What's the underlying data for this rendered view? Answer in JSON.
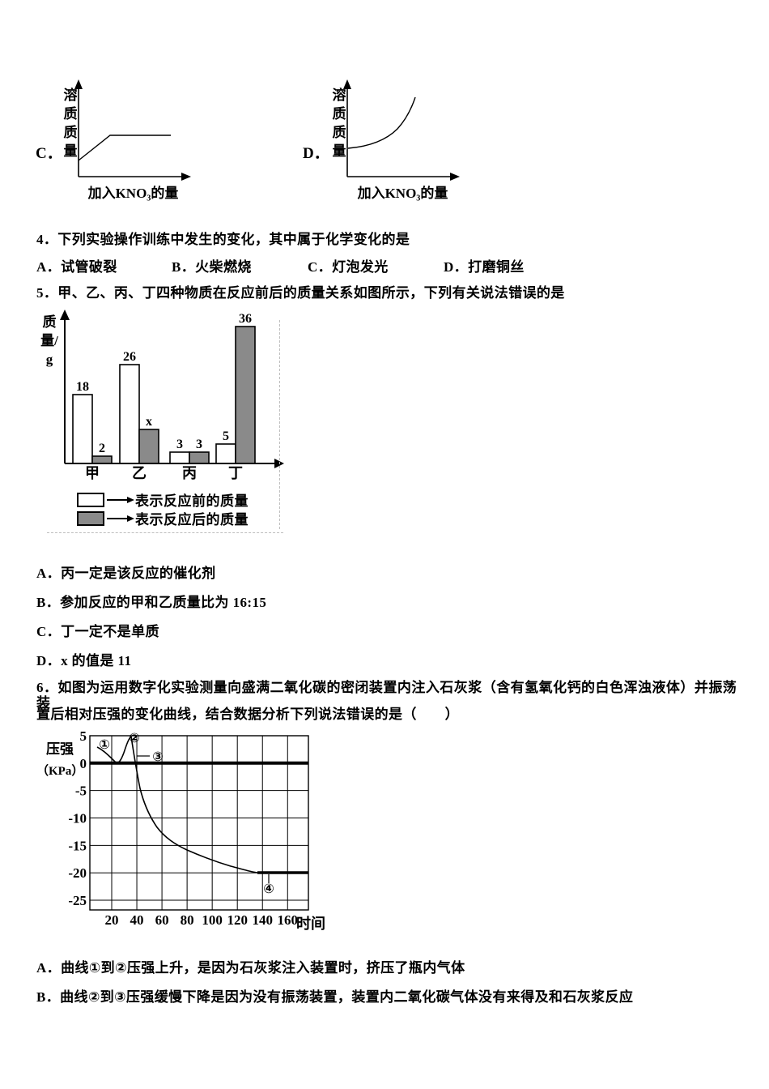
{
  "solubility_graphs": {
    "option_c": {
      "letter": "C．",
      "ylabel": "溶质质量",
      "xlabel": "加入KNO₃的量"
    },
    "option_d": {
      "letter": "D．",
      "ylabel": "溶质质量",
      "xlabel": "加入KNO₃的量"
    }
  },
  "q4": {
    "stem": "4．下列实验操作训练中发生的变化，其中属于化学变化的是",
    "optA": "A．试管破裂",
    "optB": "B．火柴燃烧",
    "optC": "C．灯泡发光",
    "optD": "D．打磨铜丝"
  },
  "q5": {
    "stem": "5．甲、乙、丙、丁四种物质在反应前后的质量关系如图所示，下列有关说法错误的是",
    "chart_data": {
      "type": "bar",
      "ylabel": "质量/g",
      "categories": [
        "甲",
        "乙",
        "丙",
        "丁"
      ],
      "series": [
        {
          "name": "表示反应前的质量",
          "fill": "#ffffff",
          "values": [
            18,
            26,
            3,
            5
          ],
          "labels": [
            "18",
            "26",
            "3",
            "5"
          ]
        },
        {
          "name": "表示反应后的质量",
          "fill": "#8a8a8a",
          "values": [
            2,
            "x",
            3,
            36
          ],
          "labels": [
            "2",
            "x",
            "3",
            "36"
          ]
        }
      ]
    },
    "optA": "A．丙一定是该反应的催化剂",
    "optB": "B．参加反应的甲和乙质量比为 16:15",
    "optC": "C．丁一定不是单质",
    "optD": "D．x 的值是 11"
  },
  "q6": {
    "stem1": "6．如图为运用数字化实验测量向盛满二氧化碳的密闭装置内注入石灰浆（含有氢氧化钙的白色浑浊液体）并振荡装",
    "stem2": "置后相对压强的变化曲线，结合数据分析下列说法错误的是（　　）",
    "chart_data": {
      "type": "line",
      "ylabel_lines": [
        "压强",
        "（KPa）"
      ],
      "xlabel": "时间",
      "y_ticks": [
        5,
        0,
        -5,
        -10,
        -15,
        -20,
        -25
      ],
      "x_ticks": [
        20,
        40,
        60,
        80,
        100,
        120,
        140,
        160
      ],
      "ylim": [
        -25,
        5
      ],
      "grid": true,
      "annotations": [
        "①",
        "②",
        "③",
        "④"
      ],
      "points": [
        [
          12,
          3.5
        ],
        [
          22,
          0
        ],
        [
          32,
          5
        ],
        [
          36,
          0
        ],
        [
          41,
          -5
        ],
        [
          53,
          -10
        ],
        [
          76,
          -15
        ],
        [
          135,
          -20
        ],
        [
          170,
          -20
        ]
      ]
    },
    "optA": "A．曲线①到②压强上升，是因为石灰浆注入装置时，挤压了瓶内气体",
    "optB": "B．曲线②到③压强缓慢下降是因为没有振荡装置，装置内二氧化碳气体没有来得及和石灰浆反应"
  }
}
